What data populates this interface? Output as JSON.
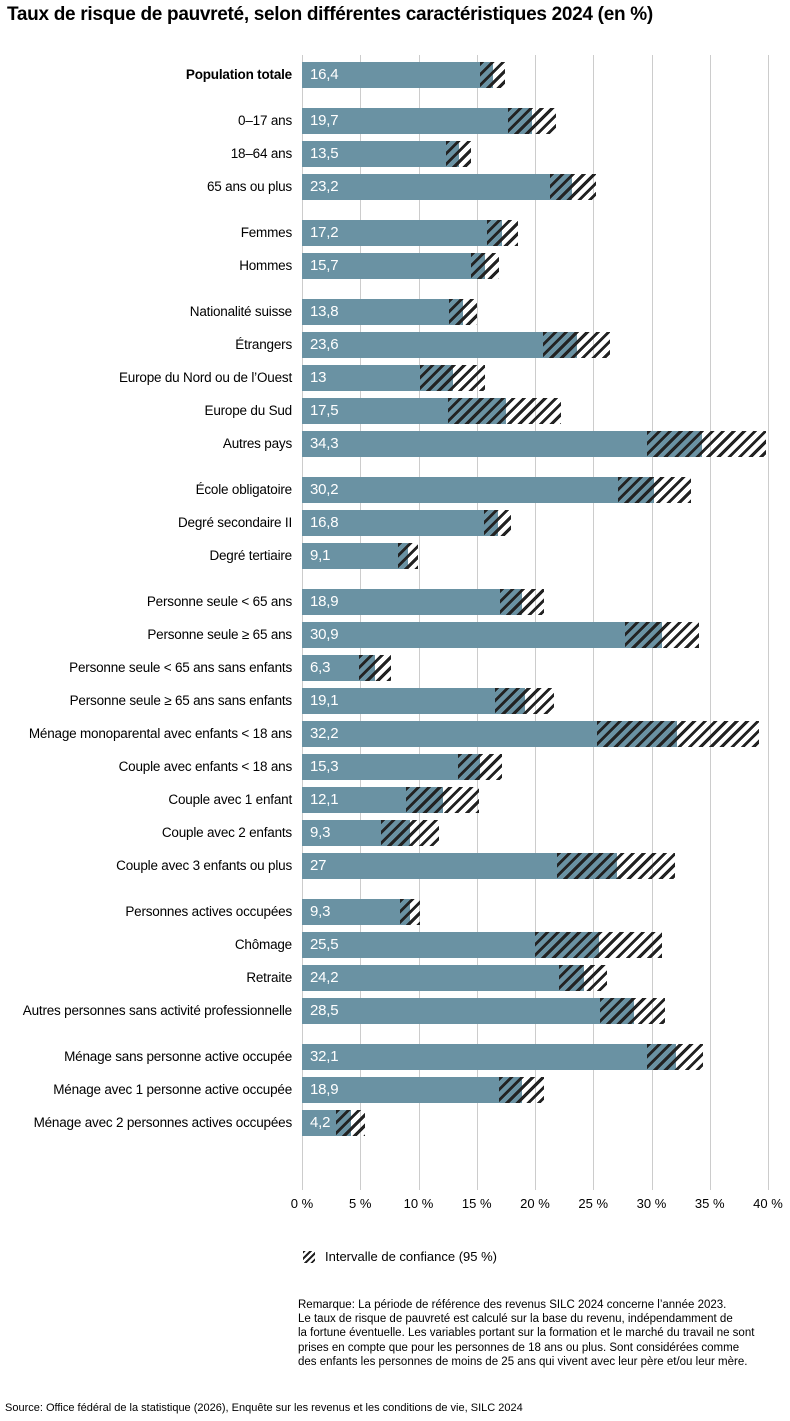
{
  "title": "Taux de risque de pauvreté, selon différentes caractéristiques 2024 (en %)",
  "chart_data": {
    "type": "bar",
    "orientation": "horizontal",
    "title": "Taux de risque de pauvreté, selon différentes caractéristiques 2024 (en %)",
    "xlim": [
      0,
      40
    ],
    "grid": true,
    "x_ticks": [
      "0 %",
      "5 %",
      "10 %",
      "15 %",
      "20 %",
      "25 %",
      "30 %",
      "35 %",
      "40 %"
    ],
    "bar_color": "#6a92a3",
    "hatch_color": "#222222",
    "gridline_color": "#cccccc",
    "legend": {
      "label": "Intervalle de confiance (95 %)"
    },
    "groups": [
      {
        "items": [
          {
            "label": "Population totale",
            "value": 16.4,
            "display": "16,4",
            "ci": [
              15.3,
              17.4
            ],
            "bold": true
          }
        ]
      },
      {
        "items": [
          {
            "label": "0–17 ans",
            "value": 19.7,
            "display": "19,7",
            "ci": [
              17.7,
              21.8
            ]
          },
          {
            "label": "18–64 ans",
            "value": 13.5,
            "display": "13,5",
            "ci": [
              12.4,
              14.5
            ]
          },
          {
            "label": "65 ans ou plus",
            "value": 23.2,
            "display": "23,2",
            "ci": [
              21.3,
              25.2
            ]
          }
        ]
      },
      {
        "items": [
          {
            "label": "Femmes",
            "value": 17.2,
            "display": "17,2",
            "ci": [
              15.9,
              18.5
            ]
          },
          {
            "label": "Hommes",
            "value": 15.7,
            "display": "15,7",
            "ci": [
              14.5,
              16.9
            ]
          }
        ]
      },
      {
        "items": [
          {
            "label": "Nationalité suisse",
            "value": 13.8,
            "display": "13,8",
            "ci": [
              12.6,
              15.0
            ]
          },
          {
            "label": "Étrangers",
            "value": 23.6,
            "display": "23,6",
            "ci": [
              20.7,
              26.4
            ]
          },
          {
            "label": "Europe du Nord ou de l’Ouest",
            "value": 13.0,
            "display": "13",
            "ci": [
              10.1,
              15.7
            ]
          },
          {
            "label": "Europe du Sud",
            "value": 17.5,
            "display": "17,5",
            "ci": [
              12.5,
              22.2
            ]
          },
          {
            "label": "Autres pays",
            "value": 34.3,
            "display": "34,3",
            "ci": [
              29.6,
              39.8
            ]
          }
        ]
      },
      {
        "items": [
          {
            "label": "École obligatoire",
            "value": 30.2,
            "display": "30,2",
            "ci": [
              27.1,
              33.4
            ]
          },
          {
            "label": "Degré secondaire II",
            "value": 16.8,
            "display": "16,8",
            "ci": [
              15.6,
              17.9
            ]
          },
          {
            "label": "Degré tertiaire",
            "value": 9.1,
            "display": "9,1",
            "ci": [
              8.2,
              10.0
            ]
          }
        ]
      },
      {
        "items": [
          {
            "label": "Personne seule < 65 ans",
            "value": 18.9,
            "display": "18,9",
            "ci": [
              17.0,
              20.8
            ]
          },
          {
            "label": "Personne seule ≥ 65 ans",
            "value": 30.9,
            "display": "30,9",
            "ci": [
              27.7,
              34.1
            ]
          },
          {
            "label": "Personne seule < 65 ans sans enfants",
            "value": 6.3,
            "display": "6,3",
            "ci": [
              4.9,
              7.6
            ]
          },
          {
            "label": "Personne seule ≥ 65 ans sans enfants",
            "value": 19.1,
            "display": "19,1",
            "ci": [
              16.6,
              21.6
            ]
          },
          {
            "label": "Ménage monoparental avec enfants < 18 ans",
            "value": 32.2,
            "display": "32,2",
            "ci": [
              25.3,
              39.2
            ]
          },
          {
            "label": "Couple avec enfants < 18 ans",
            "value": 15.3,
            "display": "15,3",
            "ci": [
              13.4,
              17.2
            ]
          },
          {
            "label": "Couple avec 1 enfant",
            "value": 12.1,
            "display": "12,1",
            "ci": [
              8.9,
              15.2
            ]
          },
          {
            "label": "Couple avec 2 enfants",
            "value": 9.3,
            "display": "9,3",
            "ci": [
              6.8,
              11.8
            ]
          },
          {
            "label": "Couple avec 3 enfants ou plus",
            "value": 27.0,
            "display": "27",
            "ci": [
              21.9,
              32.0
            ]
          }
        ]
      },
      {
        "items": [
          {
            "label": "Personnes actives occupées",
            "value": 9.3,
            "display": "9,3",
            "ci": [
              8.4,
              10.1
            ]
          },
          {
            "label": "Chômage",
            "value": 25.5,
            "display": "25,5",
            "ci": [
              20.0,
              30.9
            ]
          },
          {
            "label": "Retraite",
            "value": 24.2,
            "display": "24,2",
            "ci": [
              22.1,
              26.2
            ]
          },
          {
            "label": "Autres personnes sans activité professionnelle",
            "value": 28.5,
            "display": "28,5",
            "ci": [
              25.6,
              31.2
            ]
          }
        ]
      },
      {
        "items": [
          {
            "label": "Ménage sans personne active occupée",
            "value": 32.1,
            "display": "32,1",
            "ci": [
              29.6,
              34.4
            ]
          },
          {
            "label": "Ménage avec 1 personne active occupée",
            "value": 18.9,
            "display": "18,9",
            "ci": [
              16.9,
              20.8
            ]
          },
          {
            "label": "Ménage avec 2 personnes actives occupées",
            "value": 4.2,
            "display": "4,2",
            "ci": [
              2.9,
              5.4
            ]
          }
        ]
      }
    ]
  },
  "legend_label": "Intervalle de confiance (95 %)",
  "remark_lines": [
    "Remarque: La période de référence des revenus SILC 2024 concerne l’année 2023.",
    "Le taux de risque de pauvreté est calculé sur la base du revenu, indépendamment de",
    "la fortune éventuelle. Les variables portant sur la formation et le marché du travail ne sont",
    "prises en compte que pour les personnes de 18 ans ou plus. Sont considérées comme",
    "des enfants les personnes de moins de 25 ans qui vivent avec leur père et/ou leur mère."
  ],
  "source": "Source: Office fédéral de la statistique (2026), Enquête sur les revenus et les conditions de vie, SILC 2024"
}
